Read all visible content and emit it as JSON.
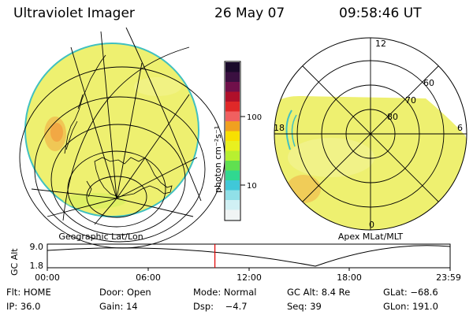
{
  "header": {
    "instrument": "Ultraviolet Imager",
    "date": "26 May 07",
    "time": "09:58:46 UT"
  },
  "colorbar": {
    "unit_label": "photon cm⁻²s⁻¹",
    "tick_labels": [
      "100",
      "10"
    ],
    "colors": [
      "#1a0a2a",
      "#3a1040",
      "#70104a",
      "#b0102a",
      "#e02828",
      "#f06060",
      "#f0a020",
      "#f8e000",
      "#e8f020",
      "#b8f030",
      "#60e050",
      "#30d890",
      "#40c8d8",
      "#90e0e8",
      "#d0f0f4",
      "#f0f4f4"
    ]
  },
  "left_panel": {
    "caption": "Geographic Lat/Lon",
    "fill_color": "#eef070"
  },
  "right_panel": {
    "caption": "Apex MLat/MLT",
    "mlt_labels": [
      "12",
      "6",
      "0",
      "18"
    ],
    "mlat_labels": [
      "60",
      "70",
      "80"
    ],
    "fill_color": "#eef070"
  },
  "altitude_plot": {
    "ylabel": "GC Alt",
    "y_ticks": [
      "9.0",
      "1.8"
    ],
    "x_ticks": [
      "00:00",
      "06:00",
      "12:00",
      "18:00",
      "23:59"
    ],
    "marker_color": "#e00000",
    "marker_time_hours": 9.98
  },
  "info": {
    "flt": "Flt: HOME",
    "door": "Door: Open",
    "mode": "Mode: Normal",
    "gc_alt": "GC Alt: 8.4 Re",
    "glat": "GLat: −68.6",
    "ip": "IP: 36.0",
    "gain": "Gain: 14",
    "dsp": "Dsp:    −4.7",
    "seq": "Seq: 39",
    "glon": "GLon: 191.0"
  }
}
